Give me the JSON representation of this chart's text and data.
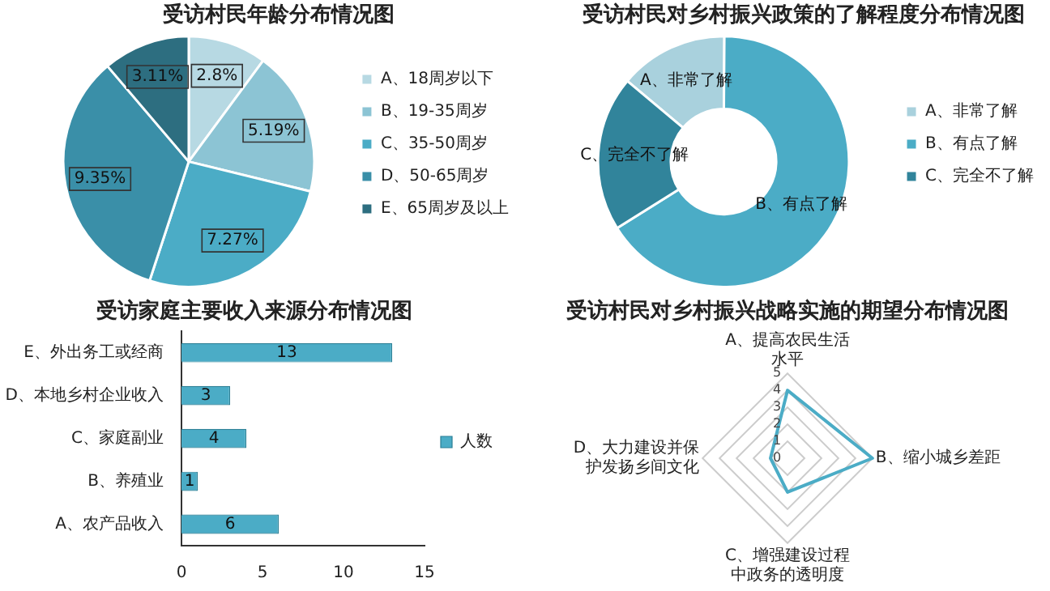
{
  "chart_data": [
    {
      "type": "pie",
      "title": "受访村民年龄分布情况图",
      "categories": [
        "A、18周岁以下",
        "B、19-35周岁",
        "C、35-50周岁",
        "D、50-65周岁",
        "E、65周岁及以上"
      ],
      "values": [
        2.8,
        5.19,
        7.27,
        9.35,
        3.11
      ],
      "value_labels": [
        "2.8%",
        "5.19%",
        "7.27%",
        "9.35%",
        "3.11%"
      ],
      "colors": [
        "#b7d9e3",
        "#8cc4d4",
        "#4bacc6",
        "#3a8fa8",
        "#2d6e80"
      ],
      "legend": "right"
    },
    {
      "type": "donut",
      "title": "受访村民对乡村振兴政策的了解程度分布情况图",
      "categories": [
        "A、非常了解",
        "B、有点了解",
        "C、完全不了解"
      ],
      "values": [
        14,
        66,
        20
      ],
      "colors": [
        "#a9d1dd",
        "#4bacc6",
        "#31849b"
      ],
      "legend": "right"
    },
    {
      "type": "bar",
      "orientation": "horizontal",
      "title": "受访家庭主要收入来源分布情况图",
      "categories": [
        "E、外出务工或经商",
        "D、本地乡村企业收入",
        "C、家庭副业",
        "B、养殖业",
        "A、农产品收入"
      ],
      "series": [
        {
          "name": "人数",
          "color": "#4bacc6",
          "values": [
            13,
            3,
            4,
            1,
            6
          ]
        }
      ],
      "xlim": [
        0,
        15
      ],
      "xticks": [
        0,
        5,
        10,
        15
      ],
      "data_labels": true,
      "legend": "right",
      "grid": false
    },
    {
      "type": "radar",
      "title": "受访村民对乡村振兴战略实施的期望分布情况图",
      "categories": [
        "A、提高农民生活水平",
        "B、缩小城乡差距",
        "C、增强建设过程中政务的透明度",
        "D、大力建设并保护发扬乡间文化"
      ],
      "series": [
        {
          "color": "#4bacc6",
          "values": [
            4,
            5,
            2,
            1
          ]
        }
      ],
      "ylim": [
        0,
        5
      ],
      "yticks": [
        0,
        1,
        2,
        3,
        4,
        5
      ],
      "marker": "none",
      "grid": true,
      "legend": false
    }
  ]
}
